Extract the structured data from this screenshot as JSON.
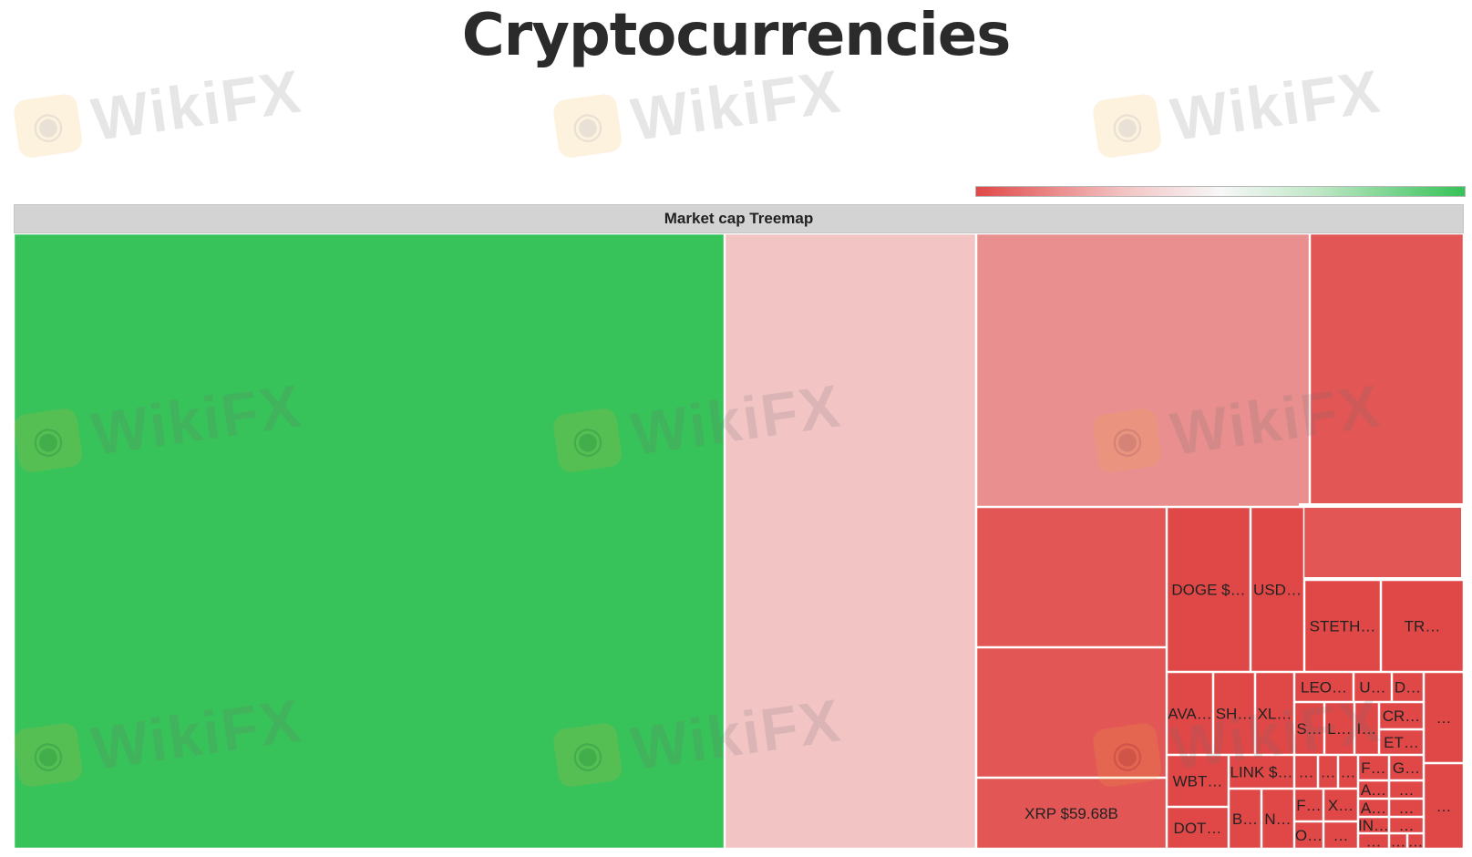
{
  "title": "Cryptocurrencies",
  "chart_data": {
    "type": "treemap",
    "title": "Market cap Treemap",
    "color_legend": {
      "kind": "gradient",
      "from_color": "#e14848",
      "mid_color": "#f7f7f7",
      "to_color": "#36c257"
    },
    "colors": {
      "green": "#38c25a",
      "pink": "#f2c4c4",
      "salmon": "#e98f8f",
      "red": "#e25656",
      "deep_red": "#e04848"
    },
    "tiles": [
      {
        "id": "btc",
        "label": "",
        "color": "green"
      },
      {
        "id": "eth",
        "label": "",
        "color": "pink"
      },
      {
        "id": "usdt",
        "label": "",
        "color": "salmon"
      },
      {
        "id": "bnb",
        "label": "",
        "color": "red"
      },
      {
        "id": "sol",
        "label": "",
        "color": "red"
      },
      {
        "id": "usdc",
        "label": "",
        "color": "red"
      },
      {
        "id": "xrp",
        "label": "XRP $59.68B",
        "color": "red"
      },
      {
        "id": "highlight",
        "label": "",
        "color": "red"
      },
      {
        "id": "doge",
        "label": "DOGE $…",
        "color": "deep_red"
      },
      {
        "id": "usd",
        "label": "USD…",
        "color": "deep_red"
      },
      {
        "id": "steth",
        "label": "STETH…",
        "color": "deep_red"
      },
      {
        "id": "tr",
        "label": "TR…",
        "color": "deep_red"
      },
      {
        "id": "ava",
        "label": "AVA…",
        "color": "deep_red"
      },
      {
        "id": "sh",
        "label": "SH…",
        "color": "deep_red"
      },
      {
        "id": "xl",
        "label": "XL…",
        "color": "deep_red"
      },
      {
        "id": "leo",
        "label": "LEO…",
        "color": "deep_red"
      },
      {
        "id": "u",
        "label": "U…",
        "color": "deep_red"
      },
      {
        "id": "d",
        "label": "D…",
        "color": "deep_red"
      },
      {
        "id": "s",
        "label": "S…",
        "color": "deep_red"
      },
      {
        "id": "l",
        "label": "L…",
        "color": "deep_red"
      },
      {
        "id": "i",
        "label": "I…",
        "color": "deep_red"
      },
      {
        "id": "cr",
        "label": "CR…",
        "color": "deep_red"
      },
      {
        "id": "et",
        "label": "ET…",
        "color": "deep_red"
      },
      {
        "id": "wbt",
        "label": "WBT…",
        "color": "deep_red"
      },
      {
        "id": "link",
        "label": "LINK $…",
        "color": "deep_red"
      },
      {
        "id": "m1",
        "label": "…",
        "color": "deep_red"
      },
      {
        "id": "m2",
        "label": "…",
        "color": "deep_red"
      },
      {
        "id": "m3",
        "label": "…",
        "color": "deep_red"
      },
      {
        "id": "f1",
        "label": "F…",
        "color": "deep_red"
      },
      {
        "id": "g",
        "label": "G…",
        "color": "deep_red"
      },
      {
        "id": "a1",
        "label": "A…",
        "color": "deep_red"
      },
      {
        "id": "m4",
        "label": "…",
        "color": "deep_red"
      },
      {
        "id": "a2",
        "label": "A…",
        "color": "deep_red"
      },
      {
        "id": "m5",
        "label": "…",
        "color": "deep_red"
      },
      {
        "id": "dot",
        "label": "DOT…",
        "color": "deep_red"
      },
      {
        "id": "b",
        "label": "B…",
        "color": "deep_red"
      },
      {
        "id": "n",
        "label": "N…",
        "color": "deep_red"
      },
      {
        "id": "f2",
        "label": "F…",
        "color": "deep_red"
      },
      {
        "id": "x",
        "label": "X…",
        "color": "deep_red"
      },
      {
        "id": "m6",
        "label": "…",
        "color": "deep_red"
      },
      {
        "id": "in",
        "label": "IN…",
        "color": "deep_red"
      },
      {
        "id": "m7",
        "label": "…",
        "color": "deep_red"
      },
      {
        "id": "o",
        "label": "O…",
        "color": "deep_red"
      },
      {
        "id": "m8",
        "label": "…",
        "color": "deep_red"
      },
      {
        "id": "m9",
        "label": "…",
        "color": "deep_red"
      },
      {
        "id": "m10",
        "label": "…",
        "color": "deep_red"
      },
      {
        "id": "m11",
        "label": "…",
        "color": "deep_red"
      },
      {
        "id": "m12",
        "label": "…",
        "color": "deep_red"
      }
    ]
  },
  "watermark": {
    "text": "WikiFX",
    "logo_icon": "eagle-logo-icon"
  }
}
